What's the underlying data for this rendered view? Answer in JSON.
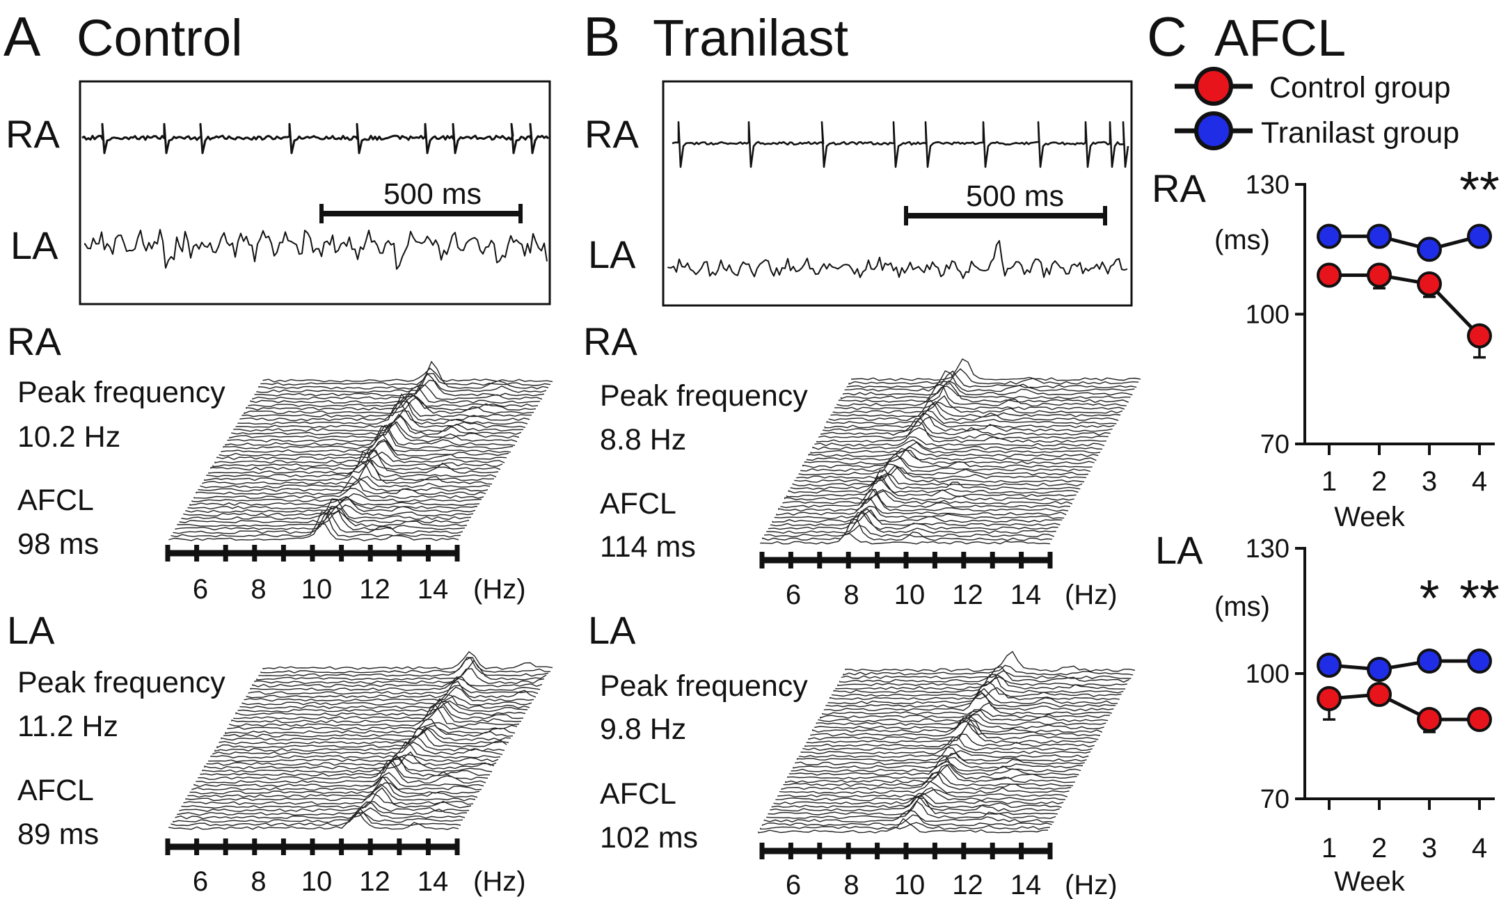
{
  "panels": {
    "A": {
      "letter": "A",
      "title": "Control",
      "ra": "RA",
      "la": "LA",
      "scalebar": "500 ms"
    },
    "B": {
      "letter": "B",
      "title": "Tranilast",
      "ra": "RA",
      "la": "LA",
      "scalebar": "500 ms"
    },
    "C": {
      "letter": "C",
      "title": "AFCL"
    }
  },
  "spectra": {
    "A_RA": {
      "channel": "RA",
      "peak_label": "Peak frequency",
      "peak_value": "10.2 Hz",
      "afcl_label": "AFCL",
      "afcl_value": "98 ms"
    },
    "A_LA": {
      "channel": "LA",
      "peak_label": "Peak frequency",
      "peak_value": "11.2 Hz",
      "afcl_label": "AFCL",
      "afcl_value": "89 ms"
    },
    "B_RA": {
      "channel": "RA",
      "peak_label": "Peak frequency",
      "peak_value": "8.8 Hz",
      "afcl_label": "AFCL",
      "afcl_value": "114 ms"
    },
    "B_LA": {
      "channel": "LA",
      "peak_label": "Peak frequency",
      "peak_value": "9.8 Hz",
      "afcl_label": "AFCL",
      "afcl_value": "102 ms"
    },
    "ticks": [
      "6",
      "8",
      "10",
      "12",
      "14"
    ],
    "unit": "(Hz)"
  },
  "legend": {
    "control": "Control group",
    "tranilast": "Tranilast group"
  },
  "colors": {
    "control": "#e8141c",
    "tranilast": "#1f2de6"
  },
  "chart_data": [
    {
      "type": "line",
      "title": "RA",
      "ylabel": "(ms)",
      "xlabel": "Week",
      "ylim": [
        70,
        130
      ],
      "yticks": [
        "130",
        "100",
        "70"
      ],
      "categories": [
        "1",
        "2",
        "3",
        "4"
      ],
      "significance": [
        "",
        "",
        "",
        "**"
      ],
      "series": [
        {
          "name": "Control group",
          "values": [
            109,
            109,
            107,
            95
          ],
          "errors": [
            2,
            3,
            3,
            5
          ]
        },
        {
          "name": "Tranilast group",
          "values": [
            118,
            118,
            115,
            118
          ],
          "errors": [
            1,
            2,
            1,
            1
          ]
        }
      ]
    },
    {
      "type": "line",
      "title": "LA",
      "ylabel": "(ms)",
      "xlabel": "Week",
      "ylim": [
        70,
        130
      ],
      "yticks": [
        "130",
        "100",
        "70"
      ],
      "categories": [
        "1",
        "2",
        "3",
        "4"
      ],
      "significance": [
        "",
        "",
        "*",
        "**"
      ],
      "series": [
        {
          "name": "Control group",
          "values": [
            94,
            95,
            89,
            89
          ],
          "errors": [
            5,
            1,
            3,
            2
          ]
        },
        {
          "name": "Tranilast group",
          "values": [
            102,
            101,
            103,
            103
          ],
          "errors": [
            1,
            2,
            2,
            1
          ]
        }
      ]
    }
  ]
}
